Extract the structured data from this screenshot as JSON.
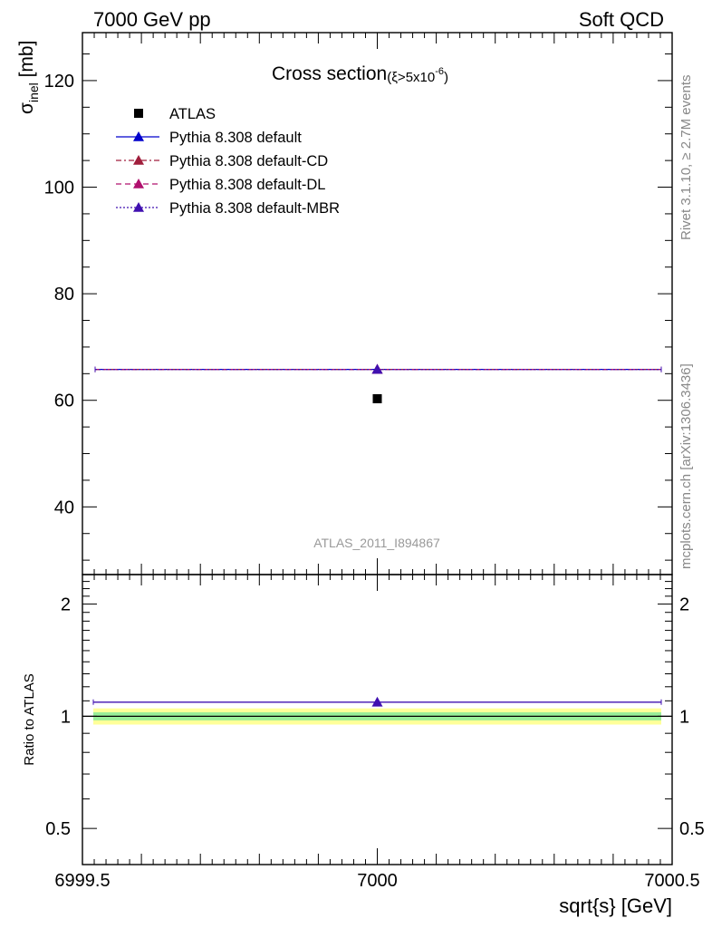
{
  "header": {
    "energy_label": "7000 GeV pp",
    "category_label": "Soft QCD"
  },
  "side_labels": {
    "rivet": "Rivet 3.1.10, ≥ 2.7M events",
    "mcplots": "mcplots.cern.ch [arXiv:1306.3436]"
  },
  "chart_data": [
    {
      "type": "scatter",
      "title_main": "Cross section",
      "title_cut": "(ξ>5x10",
      "title_cut_exp": "-6",
      "title_cut_close": ")",
      "ylabel_sym": "σ",
      "ylabel_sub": "inel",
      "ylabel_unit": " [mb]",
      "xlim": [
        6999.5,
        7000.5
      ],
      "ylim": [
        27.3,
        129
      ],
      "y_ticks": [
        40,
        60,
        80,
        100,
        120
      ],
      "y_tick_labels": [
        "40",
        "60",
        "80",
        "100",
        "120"
      ],
      "analysis_label": "ATLAS_2011_I894867",
      "legend_placement": "top-left",
      "series": [
        {
          "name": "ATLAS",
          "kind": "data",
          "color": "#000000",
          "x": [
            7000
          ],
          "y": [
            60.3
          ]
        },
        {
          "name": "Pythia 8.308 default",
          "kind": "mc",
          "dash": "",
          "color": "#0000cc",
          "x": [
            7000
          ],
          "y": [
            65.8
          ]
        },
        {
          "name": "Pythia 8.308 default-CD",
          "kind": "mc",
          "dash": "6,3,2,3",
          "color": "#a01e3c",
          "x": [
            7000
          ],
          "y": [
            65.8
          ]
        },
        {
          "name": "Pythia 8.308 default-DL",
          "kind": "mc",
          "dash": "6,4",
          "color": "#b0106e",
          "x": [
            7000
          ],
          "y": [
            65.8
          ]
        },
        {
          "name": "Pythia 8.308 default-MBR",
          "kind": "mc",
          "dash": "2,2",
          "color": "#4010b0",
          "x": [
            7000
          ],
          "y": [
            65.8
          ]
        }
      ]
    },
    {
      "type": "scatter",
      "ylabel": "Ratio to ATLAS",
      "xlabel": "sqrt{s} [GeV]",
      "xlim": [
        6999.5,
        7000.5
      ],
      "ylim": [
        0.4,
        2.4
      ],
      "log_y": true,
      "x_ticks": [
        6999.5,
        7000,
        7000.5
      ],
      "x_tick_labels": [
        "6999.5",
        "7000",
        "7000.5"
      ],
      "y_labeled_ticks": [
        0.5,
        1,
        2
      ],
      "y_tick_labels": [
        "0.5",
        "1",
        "2"
      ],
      "bands": [
        {
          "name": "outer",
          "low": 0.95,
          "high": 1.05,
          "color": "#ffff99"
        },
        {
          "name": "inner",
          "low": 0.975,
          "high": 1.025,
          "color": "#99ee99"
        }
      ],
      "ratio_value": 1.091,
      "ratio_color": "#4010b0"
    }
  ]
}
